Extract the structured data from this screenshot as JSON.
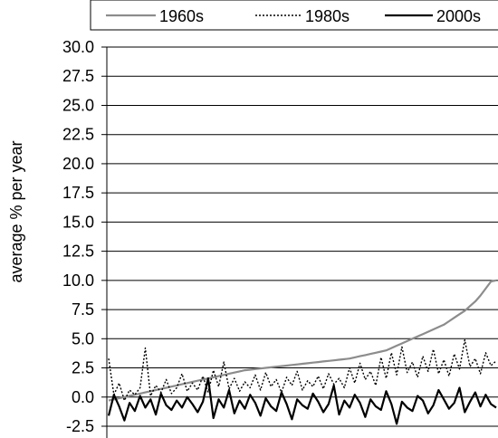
{
  "chart_data": {
    "type": "line",
    "title": "",
    "xlabel": "",
    "ylabel": "average % per year",
    "ylim": [
      -2.5,
      30.0
    ],
    "yticks": [
      "30.0",
      "27.5",
      "25.0",
      "22.5",
      "20.0",
      "17.5",
      "15.0",
      "12.5",
      "10.0",
      "7.5",
      "5.0",
      "2.5",
      "0.0",
      "-2.5"
    ],
    "grid": true,
    "legend_position": "top",
    "series": [
      {
        "name": "1960s",
        "color": "#8c8c8c",
        "style": "solid",
        "values": [
          -0.3,
          -0.2,
          -0.1,
          0.0,
          0.1,
          0.2,
          0.3,
          0.4,
          0.5,
          0.6,
          0.7,
          0.8,
          0.9,
          1.0,
          1.1,
          1.2,
          1.3,
          1.4,
          1.5,
          1.6,
          1.7,
          1.8,
          1.9,
          2.0,
          2.1,
          2.2,
          2.3,
          2.35,
          2.4,
          2.45,
          2.5,
          2.55,
          2.6,
          2.65,
          2.7,
          2.75,
          2.8,
          2.85,
          2.9,
          2.95,
          3.0,
          3.05,
          3.1,
          3.15,
          3.2,
          3.25,
          3.3,
          3.4,
          3.5,
          3.6,
          3.7,
          3.8,
          3.9,
          4.0,
          4.2,
          4.4,
          4.6,
          4.8,
          5.0,
          5.2,
          5.4,
          5.6,
          5.8,
          6.0,
          6.2,
          6.5,
          6.8,
          7.1,
          7.4,
          7.8,
          8.2,
          8.7,
          9.3,
          9.9,
          10.0
        ]
      },
      {
        "name": "1980s",
        "color": "#000000",
        "style": "dotted",
        "values": [
          3.3,
          0.2,
          1.2,
          -0.3,
          0.6,
          0.2,
          0.8,
          4.2,
          0.1,
          1.0,
          0.4,
          1.5,
          0.3,
          0.8,
          2.0,
          0.5,
          1.2,
          0.6,
          1.8,
          0.4,
          2.3,
          0.9,
          3.0,
          0.7,
          1.6,
          0.5,
          1.3,
          0.8,
          1.9,
          0.6,
          2.1,
          0.9,
          1.5,
          0.4,
          1.7,
          1.0,
          2.2,
          0.6,
          1.4,
          0.9,
          1.8,
          0.7,
          2.0,
          1.1,
          1.6,
          0.8,
          2.5,
          1.2,
          2.9,
          1.5,
          2.2,
          1.0,
          3.4,
          1.6,
          3.8,
          1.9,
          4.3,
          2.1,
          3.0,
          1.7,
          3.5,
          2.2,
          4.1,
          2.0,
          3.2,
          1.8,
          3.7,
          2.4,
          4.9,
          2.6,
          3.3,
          2.0,
          3.8,
          2.7,
          3.1
        ]
      },
      {
        "name": "2000s",
        "color": "#000000",
        "style": "solid",
        "values": [
          -1.6,
          0.2,
          -0.8,
          -2.0,
          -0.5,
          -1.2,
          0.1,
          -0.9,
          -0.2,
          -1.5,
          0.3,
          -0.7,
          -1.1,
          -0.3,
          -0.9,
          0.0,
          -0.6,
          -1.3,
          -0.4,
          1.6,
          -1.8,
          -0.2,
          -0.9,
          0.6,
          -1.4,
          -0.3,
          -1.0,
          0.2,
          -0.5,
          -1.6,
          -0.1,
          -0.8,
          -1.2,
          0.4,
          -0.6,
          -1.9,
          -0.2,
          -0.7,
          -1.0,
          0.3,
          -0.4,
          -1.3,
          -0.6,
          1.0,
          -1.5,
          -0.3,
          -0.9,
          0.2,
          -0.5,
          -1.7,
          -0.2,
          -0.8,
          -1.1,
          0.5,
          -0.6,
          -2.3,
          -0.4,
          -0.9,
          -1.2,
          0.1,
          -0.3,
          -1.4,
          -0.7,
          0.6,
          -0.2,
          -1.0,
          -0.5,
          0.8,
          -1.3,
          -0.4,
          0.4,
          -0.8,
          0.2,
          -0.6,
          -0.9
        ]
      }
    ]
  }
}
